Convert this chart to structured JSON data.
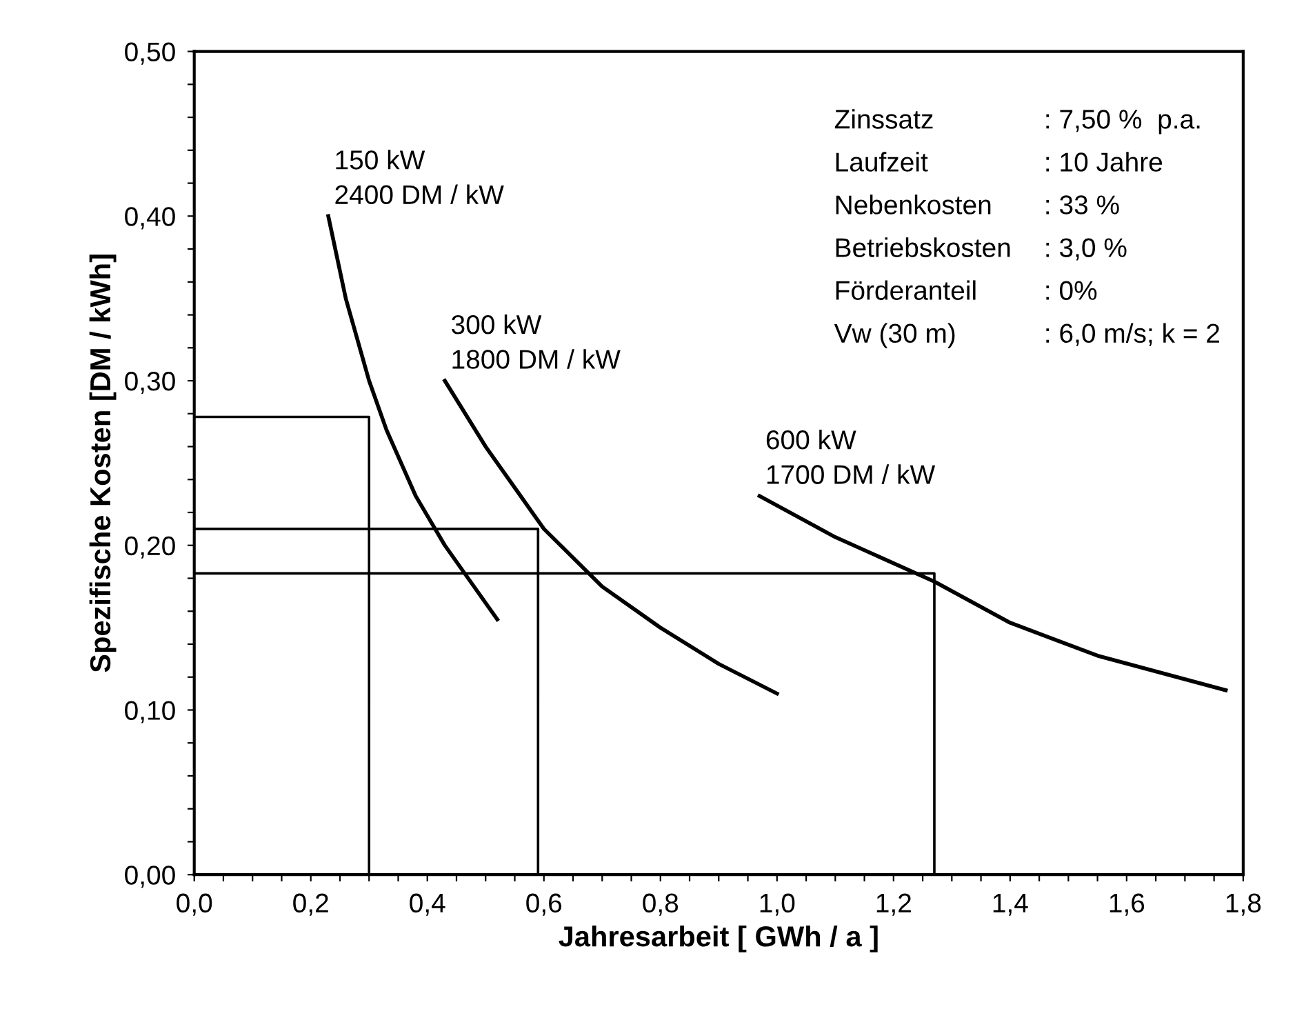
{
  "chart_data": {
    "type": "line",
    "xlabel": "Jahresarbeit [ GWh / a ]",
    "ylabel": "Spezifische Kosten [DM / kWh]",
    "xlim": [
      0,
      1.8
    ],
    "ylim": [
      0,
      0.5
    ],
    "xticks": [
      {
        "value": 0,
        "label": "0,0"
      },
      {
        "value": 0.05,
        "label": null
      },
      {
        "value": 0.1,
        "label": null
      },
      {
        "value": 0.15,
        "label": null
      },
      {
        "value": 0.2,
        "label": "0,2"
      },
      {
        "value": 0.25,
        "label": null
      },
      {
        "value": 0.3,
        "label": null
      },
      {
        "value": 0.35,
        "label": null
      },
      {
        "value": 0.4,
        "label": "0,4"
      },
      {
        "value": 0.45,
        "label": null
      },
      {
        "value": 0.5,
        "label": null
      },
      {
        "value": 0.55,
        "label": null
      },
      {
        "value": 0.6,
        "label": "0,6"
      },
      {
        "value": 0.65,
        "label": null
      },
      {
        "value": 0.7,
        "label": null
      },
      {
        "value": 0.75,
        "label": null
      },
      {
        "value": 0.8,
        "label": "0,8"
      },
      {
        "value": 0.85,
        "label": null
      },
      {
        "value": 0.9,
        "label": null
      },
      {
        "value": 0.95,
        "label": null
      },
      {
        "value": 1.0,
        "label": "1,0"
      },
      {
        "value": 1.05,
        "label": null
      },
      {
        "value": 1.1,
        "label": null
      },
      {
        "value": 1.15,
        "label": null
      },
      {
        "value": 1.2,
        "label": "1,2"
      },
      {
        "value": 1.25,
        "label": null
      },
      {
        "value": 1.3,
        "label": null
      },
      {
        "value": 1.35,
        "label": null
      },
      {
        "value": 1.4,
        "label": "1,4"
      },
      {
        "value": 1.45,
        "label": null
      },
      {
        "value": 1.5,
        "label": null
      },
      {
        "value": 1.55,
        "label": null
      },
      {
        "value": 1.6,
        "label": "1,6"
      },
      {
        "value": 1.65,
        "label": null
      },
      {
        "value": 1.7,
        "label": null
      },
      {
        "value": 1.75,
        "label": null
      },
      {
        "value": 1.8,
        "label": "1,8"
      }
    ],
    "yticks": [
      {
        "value": 0,
        "label": "0,00"
      },
      {
        "value": 0.02,
        "label": null
      },
      {
        "value": 0.04,
        "label": null
      },
      {
        "value": 0.06,
        "label": null
      },
      {
        "value": 0.08,
        "label": null
      },
      {
        "value": 0.1,
        "label": "0,10"
      },
      {
        "value": 0.12,
        "label": null
      },
      {
        "value": 0.14,
        "label": null
      },
      {
        "value": 0.16,
        "label": null
      },
      {
        "value": 0.18,
        "label": null
      },
      {
        "value": 0.2,
        "label": "0,20"
      },
      {
        "value": 0.22,
        "label": null
      },
      {
        "value": 0.24,
        "label": null
      },
      {
        "value": 0.26,
        "label": null
      },
      {
        "value": 0.28,
        "label": null
      },
      {
        "value": 0.3,
        "label": "0,30"
      },
      {
        "value": 0.32,
        "label": null
      },
      {
        "value": 0.34,
        "label": null
      },
      {
        "value": 0.36,
        "label": null
      },
      {
        "value": 0.38,
        "label": null
      },
      {
        "value": 0.4,
        "label": "0,40"
      },
      {
        "value": 0.42,
        "label": null
      },
      {
        "value": 0.44,
        "label": null
      },
      {
        "value": 0.46,
        "label": null
      },
      {
        "value": 0.48,
        "label": null
      },
      {
        "value": 0.5,
        "label": "0,50"
      }
    ],
    "grid": false,
    "legend": false,
    "marker": "none",
    "line_style": "solid",
    "series": [
      {
        "name": "150 kW\n2400 DM / kW",
        "color": "#000000",
        "x": [
          0.23,
          0.26,
          0.3,
          0.33,
          0.38,
          0.43,
          0.47,
          0.52
        ],
        "values": [
          0.4,
          0.35,
          0.3,
          0.27,
          0.23,
          0.2,
          0.18,
          0.155
        ]
      },
      {
        "name": "300 kW\n1800 DM / kW",
        "color": "#000000",
        "x": [
          0.43,
          0.5,
          0.6,
          0.7,
          0.8,
          0.9,
          1.0
        ],
        "values": [
          0.3,
          0.26,
          0.21,
          0.175,
          0.15,
          0.128,
          0.11
        ]
      },
      {
        "name": "600 kW\n1700 DM / kW",
        "color": "#000000",
        "x": [
          0.97,
          1.1,
          1.27,
          1.4,
          1.55,
          1.77
        ],
        "values": [
          0.23,
          0.205,
          0.178,
          0.153,
          0.133,
          0.112
        ]
      },
      {
        "color": "#000000",
        "x": [
          0,
          0.3,
          0.3
        ],
        "values": [
          0.278,
          0.278,
          0
        ]
      },
      {
        "color": "#000000",
        "x": [
          0,
          0.59,
          0.59
        ],
        "values": [
          0.21,
          0.21,
          0
        ]
      },
      {
        "color": "#000000",
        "x": [
          0,
          1.27,
          1.27
        ],
        "values": [
          0.183,
          0.183,
          0
        ]
      }
    ],
    "annotations": [
      "Zinssatz",
      ": 7,50 %  p.a.",
      "Laufzeit",
      ": 10 Jahre",
      "Nebenkosten",
      ": 33 %",
      "Betriebskosten",
      ": 3,0 %",
      "Förderanteil",
      ": 0%",
      "Vw (30 m)",
      ": 6,0 m/s; k = 2"
    ]
  }
}
